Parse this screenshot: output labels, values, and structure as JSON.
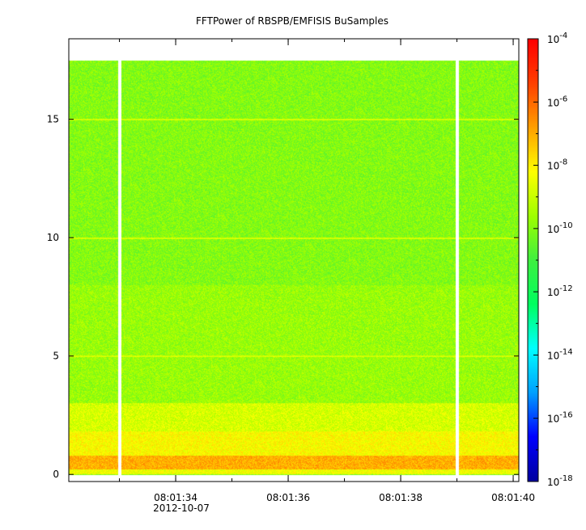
{
  "chart_data": {
    "type": "heatmap",
    "title": "FFTPower of RBSPB/EMFISIS  BuSamples",
    "xlabel": "",
    "ylabel": "",
    "x_ticks": [
      "08:01:34",
      "08:01:36",
      "08:01:38",
      "08:01:40"
    ],
    "x_date_label": "2012-10-07",
    "x_range": [
      "08:01:32.1",
      "08:01:40.1"
    ],
    "y_ticks": [
      0,
      5,
      10,
      15
    ],
    "ylim": [
      -0.3,
      18.4
    ],
    "data_extent_y": [
      0,
      17.5
    ],
    "data_gaps_x": [
      "08:01:33.0",
      "08:01:39.0"
    ],
    "colorbar": {
      "scale": "log",
      "range": [
        1e-18,
        0.0001
      ],
      "tick_exponents": [
        -4,
        -6,
        -8,
        -10,
        -12,
        -14,
        -16,
        -18
      ],
      "tick_base": "10",
      "colormap": [
        "#0000a0",
        "#0000ff",
        "#00a0ff",
        "#00ffff",
        "#00ff60",
        "#40f040",
        "#a0ff00",
        "#ffff00",
        "#ffa000",
        "#ff4000",
        "#ff0000"
      ]
    },
    "spectrum_profile": [
      {
        "freq_min": 0.0,
        "freq_max": 0.2,
        "log_power": -8.4
      },
      {
        "freq_min": 0.2,
        "freq_max": 0.8,
        "log_power": -7.0
      },
      {
        "freq_min": 0.8,
        "freq_max": 1.8,
        "log_power": -8.2
      },
      {
        "freq_min": 1.8,
        "freq_max": 3.0,
        "log_power": -8.8
      },
      {
        "freq_min": 3.0,
        "freq_max": 8.0,
        "log_power": -9.7
      },
      {
        "freq_min": 8.0,
        "freq_max": 17.5,
        "log_power": -10.0
      }
    ],
    "harmonic_lines": [
      {
        "freq": 5,
        "log_power": -8.8
      },
      {
        "freq": 10,
        "log_power": -8.8
      },
      {
        "freq": 15,
        "log_power": -8.8
      }
    ]
  }
}
